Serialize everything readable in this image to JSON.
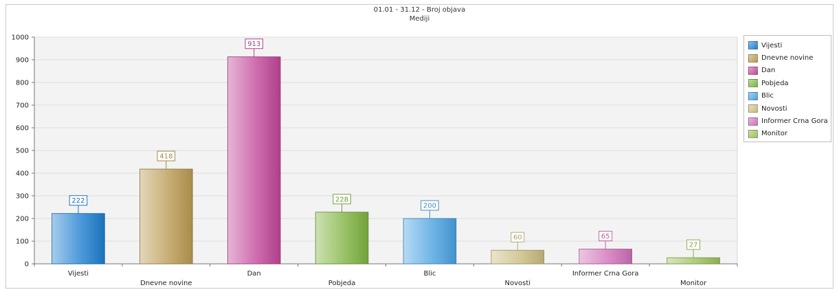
{
  "chart_data": {
    "type": "bar",
    "title": "01.01 - 31.12 - Broj objava",
    "subtitle": "Mediji",
    "categories": [
      "Vijesti",
      "Dnevne novine",
      "Dan",
      "Pobjeda",
      "Blic",
      "Novosti",
      "Informer Crna Gora",
      "Monitor"
    ],
    "values": [
      222,
      418,
      913,
      228,
      200,
      60,
      65,
      27
    ],
    "colors": [
      "#1f7fd0",
      "#b99a52",
      "#c2479a",
      "#7fb340",
      "#4aa2e0",
      "#c9bc80",
      "#d070b8",
      "#9bc05a"
    ],
    "ylim": [
      0,
      1000
    ],
    "yticks": [
      0,
      100,
      200,
      300,
      400,
      500,
      600,
      700,
      800,
      900,
      1000
    ],
    "grid": true,
    "legend_position": "right"
  },
  "legend": {
    "items": [
      {
        "label": "Vijesti",
        "color": "#1f7fd0"
      },
      {
        "label": "Dnevne novine",
        "color": "#b99a52"
      },
      {
        "label": "Dan",
        "color": "#c2479a"
      },
      {
        "label": "Pobjeda",
        "color": "#7fb340"
      },
      {
        "label": "Blic",
        "color": "#4aa2e0"
      },
      {
        "label": "Novosti",
        "color": "#c9bc80"
      },
      {
        "label": "Informer Crna Gora",
        "color": "#d070b8"
      },
      {
        "label": "Monitor",
        "color": "#9bc05a"
      }
    ]
  }
}
